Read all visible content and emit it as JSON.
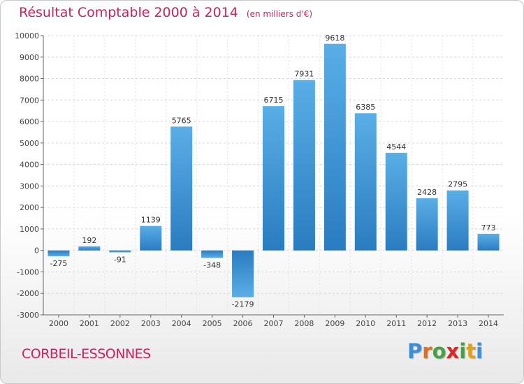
{
  "header": {
    "title": "Résultat Comptable 2000 à 2014",
    "subtitle": "(en milliers d'€)"
  },
  "footer": {
    "commune": "CORBEIL-ESSONNES",
    "logo_letters": [
      "P",
      "r",
      "o",
      "x",
      "i",
      "t",
      "i"
    ],
    "logo_colors": [
      "#3a8fd6",
      "#e0701b",
      "#46a046",
      "#d8282c",
      "#46a046",
      "#e0a21b",
      "#3a8fd6"
    ]
  },
  "chart_data": {
    "type": "bar",
    "title": "Résultat Comptable 2000 à 2014",
    "subtitle": "(en milliers d'€)",
    "xlabel": "",
    "ylabel": "",
    "categories": [
      "2000",
      "2001",
      "2002",
      "2003",
      "2004",
      "2005",
      "2006",
      "2007",
      "2008",
      "2009",
      "2010",
      "2011",
      "2012",
      "2013",
      "2014"
    ],
    "values": [
      -275,
      192,
      -91,
      1139,
      5765,
      -348,
      -2179,
      6715,
      7931,
      9618,
      6385,
      4544,
      2428,
      2795,
      773
    ],
    "data_labels": [
      "-275",
      "192",
      "-91",
      "1139",
      "5765",
      "-348",
      "-2179",
      "6715",
      "7931",
      "9618",
      "6385",
      "4544",
      "2428",
      "2795",
      "773"
    ],
    "ylim": [
      -3000,
      10000
    ],
    "yticks": [
      -3000,
      -2000,
      -1000,
      0,
      1000,
      2000,
      3000,
      4000,
      5000,
      6000,
      7000,
      8000,
      9000,
      10000
    ],
    "ytick_labels": [
      "-3000",
      "-2000",
      "-1000",
      "0",
      "1000",
      "2000",
      "3000",
      "4000",
      "5000",
      "6000",
      "7000",
      "8000",
      "9000",
      "10000"
    ],
    "grid": true,
    "legend": "none",
    "bar_color_light": "#5aaee6",
    "bar_color_dark": "#2a7cc0"
  }
}
